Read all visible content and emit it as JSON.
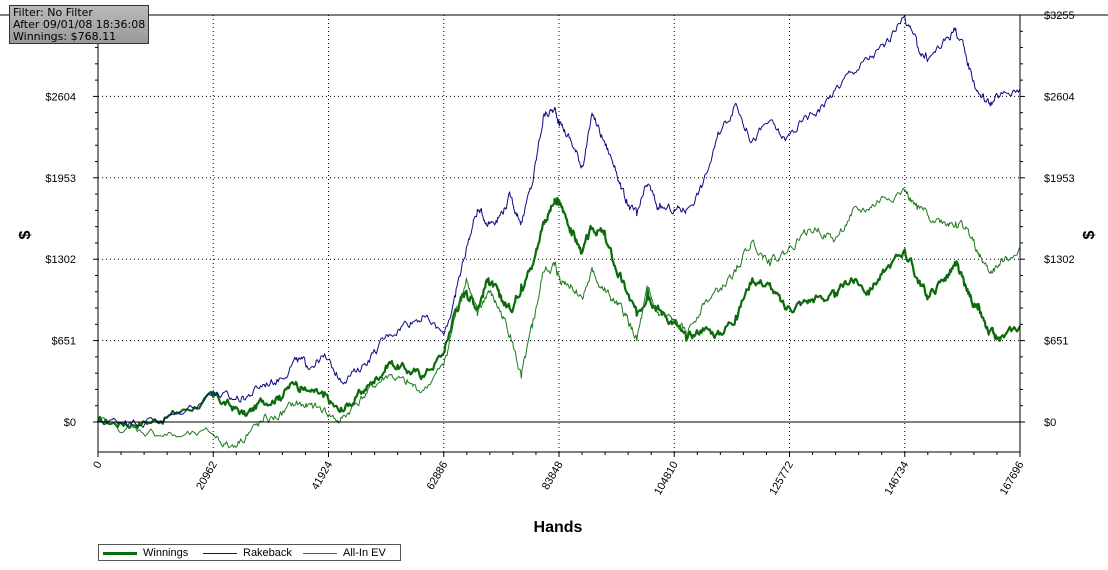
{
  "filter_box": {
    "line1": "Filter: No Filter",
    "line2": "After 09/01/08 18:36:08",
    "line3": "Winnings: $768.11"
  },
  "chart_data": {
    "type": "line",
    "xlabel": "Hands",
    "ylabel": "$",
    "x_ticks": [
      0,
      20962,
      41924,
      62886,
      83848,
      104810,
      125772,
      146734,
      167696
    ],
    "y_ticks": [
      0,
      651,
      1302,
      1953,
      2604,
      3255
    ],
    "y_tick_labels": [
      "$0",
      "$651",
      "$1302",
      "$1953",
      "$2604",
      "$3255"
    ],
    "xlim": [
      0,
      167696
    ],
    "ylim": [
      -240,
      3255
    ],
    "grid": true,
    "legend_position": "bottom-left",
    "series": [
      {
        "name": "Winnings",
        "color": "#0b6b0b",
        "x": [
          0,
          5000,
          10000,
          15000,
          20962,
          24000,
          27000,
          30000,
          33000,
          36000,
          38000,
          41000,
          44000,
          47000,
          50000,
          53000,
          56000,
          59000,
          62886,
          65000,
          67000,
          69000,
          71000,
          73000,
          75000,
          77000,
          79000,
          81000,
          83000,
          84000,
          86000,
          88000,
          90000,
          92000,
          94000,
          96000,
          98000,
          100000,
          102000,
          104810,
          107000,
          110000,
          113000,
          116000,
          119000,
          122000,
          125000,
          128000,
          131000,
          134000,
          137000,
          140000,
          143000,
          146734,
          149000,
          151000,
          154000,
          156000,
          158000,
          160000,
          162000,
          164000,
          167696
        ],
        "values": [
          0,
          -10,
          10,
          80,
          200,
          130,
          50,
          170,
          210,
          320,
          250,
          200,
          80,
          200,
          320,
          480,
          420,
          370,
          550,
          900,
          1050,
          920,
          1150,
          1000,
          900,
          1100,
          1250,
          1600,
          1750,
          1750,
          1550,
          1350,
          1550,
          1500,
          1250,
          1050,
          850,
          1050,
          900,
          800,
          650,
          750,
          700,
          850,
          1150,
          1100,
          900,
          950,
          1000,
          1000,
          1150,
          1050,
          1200,
          1380,
          1150,
          1000,
          1150,
          1250,
          1050,
          900,
          700,
          650,
          768
        ]
      },
      {
        "name": "Rakeback",
        "color": "#0c0c80",
        "x": [
          0,
          5000,
          10000,
          15000,
          20962,
          24000,
          27000,
          30000,
          33000,
          36000,
          38000,
          41000,
          44000,
          47000,
          50000,
          53000,
          56000,
          59000,
          62886,
          65000,
          67000,
          69000,
          71000,
          73000,
          75000,
          77000,
          79000,
          81000,
          83000,
          84000,
          86000,
          88000,
          90000,
          92000,
          94000,
          96000,
          98000,
          100000,
          102000,
          104810,
          107000,
          110000,
          113000,
          116000,
          119000,
          122000,
          125000,
          128000,
          131000,
          134000,
          137000,
          140000,
          143000,
          146734,
          149000,
          151000,
          154000,
          156000,
          158000,
          160000,
          162000,
          164000,
          167696
        ],
        "values": [
          0,
          10,
          20,
          60,
          250,
          180,
          200,
          300,
          350,
          500,
          450,
          520,
          350,
          400,
          550,
          700,
          800,
          850,
          700,
          1000,
          1400,
          1700,
          1600,
          1650,
          1800,
          1600,
          1900,
          2450,
          2500,
          2400,
          2250,
          2050,
          2450,
          2250,
          2050,
          1750,
          1650,
          1900,
          1700,
          1700,
          1700,
          1900,
          2300,
          2550,
          2250,
          2400,
          2250,
          2400,
          2500,
          2650,
          2800,
          2900,
          3000,
          3250,
          3000,
          2900,
          3050,
          3150,
          2900,
          2650,
          2550,
          2600,
          2664
        ]
      },
      {
        "name": "All-In EV",
        "color": "#1f7a1f",
        "x": [
          0,
          5000,
          10000,
          15000,
          20962,
          24000,
          27000,
          30000,
          33000,
          36000,
          38000,
          41000,
          44000,
          47000,
          50000,
          53000,
          56000,
          59000,
          62886,
          65000,
          67000,
          69000,
          71000,
          73000,
          75000,
          77000,
          79000,
          81000,
          83000,
          84000,
          86000,
          88000,
          90000,
          92000,
          94000,
          96000,
          98000,
          100000,
          102000,
          104810,
          107000,
          110000,
          113000,
          116000,
          119000,
          122000,
          125000,
          128000,
          131000,
          134000,
          137000,
          140000,
          143000,
          146734,
          149000,
          151000,
          154000,
          156000,
          158000,
          160000,
          162000,
          164000,
          167696
        ],
        "values": [
          0,
          -60,
          -80,
          -120,
          -100,
          -200,
          -100,
          0,
          50,
          150,
          120,
          100,
          0,
          150,
          280,
          380,
          300,
          250,
          450,
          850,
          1150,
          850,
          1050,
          900,
          700,
          350,
          750,
          1200,
          1250,
          1150,
          1100,
          1000,
          1200,
          1050,
          950,
          850,
          650,
          1050,
          850,
          800,
          700,
          950,
          1050,
          1200,
          1450,
          1300,
          1350,
          1500,
          1550,
          1450,
          1650,
          1700,
          1800,
          1850,
          1700,
          1650,
          1600,
          1600,
          1550,
          1350,
          1200,
          1250,
          1400
        ]
      }
    ]
  }
}
